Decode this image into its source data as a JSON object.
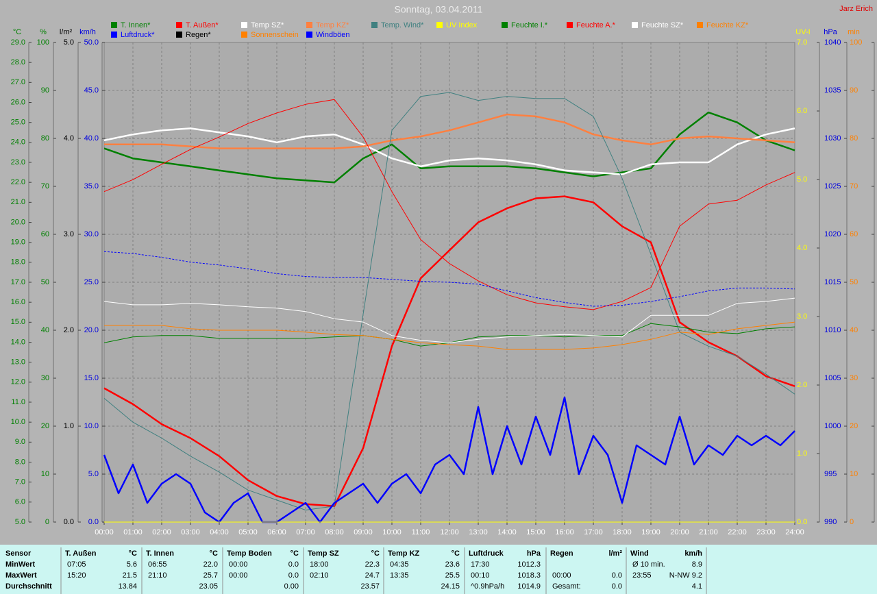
{
  "chart_data": {
    "type": "line",
    "title": "Sonntag, 03.04.2011",
    "author": "Jarz Erich",
    "xlim": [
      0,
      24
    ],
    "xticks": [
      {
        "value": 0,
        "label": "00:00"
      },
      {
        "value": 1,
        "label": "01:00"
      },
      {
        "value": 2,
        "label": "02:00"
      },
      {
        "value": 3,
        "label": "03:00"
      },
      {
        "value": 4,
        "label": "04:00"
      },
      {
        "value": 5,
        "label": "05:00"
      },
      {
        "value": 6,
        "label": "06:00"
      },
      {
        "value": 7,
        "label": "07:00"
      },
      {
        "value": 8,
        "label": "08:00"
      },
      {
        "value": 9,
        "label": "09:00"
      },
      {
        "value": 10,
        "label": "10:00"
      },
      {
        "value": 11,
        "label": "11:00"
      },
      {
        "value": 12,
        "label": "12:00"
      },
      {
        "value": 13,
        "label": "13:00"
      },
      {
        "value": 14,
        "label": "14:00"
      },
      {
        "value": 15,
        "label": "15:00"
      },
      {
        "value": 16,
        "label": "16:00"
      },
      {
        "value": 17,
        "label": "17:00"
      },
      {
        "value": 18,
        "label": "18:00"
      },
      {
        "value": 19,
        "label": "19:00"
      },
      {
        "value": 20,
        "label": "20:00"
      },
      {
        "value": 21,
        "label": "21:00"
      },
      {
        "value": 22,
        "label": "22:00"
      },
      {
        "value": 23,
        "label": "23:00"
      },
      {
        "value": 24,
        "label": "24:00"
      }
    ],
    "grid": true,
    "grid_axis": 1,
    "axes": [
      {
        "label": "°C",
        "color": "#008000",
        "side": "left",
        "lim": [
          5,
          29
        ],
        "ticks": [
          {
            "value": 5,
            "label": "5.0"
          },
          {
            "value": 6,
            "label": "6.0"
          },
          {
            "value": 7,
            "label": "7.0"
          },
          {
            "value": 8,
            "label": "8.0"
          },
          {
            "value": 9,
            "label": "9.0"
          },
          {
            "value": 10,
            "label": "10.0"
          },
          {
            "value": 11,
            "label": "11.0"
          },
          {
            "value": 12,
            "label": "12.0"
          },
          {
            "value": 13,
            "label": "13.0"
          },
          {
            "value": 14,
            "label": "14.0"
          },
          {
            "value": 15,
            "label": "15.0"
          },
          {
            "value": 16,
            "label": "16.0"
          },
          {
            "value": 17,
            "label": "17.0"
          },
          {
            "value": 18,
            "label": "18.0"
          },
          {
            "value": 19,
            "label": "19.0"
          },
          {
            "value": 20,
            "label": "20.0"
          },
          {
            "value": 21,
            "label": "21.0"
          },
          {
            "value": 22,
            "label": "22.0"
          },
          {
            "value": 23,
            "label": "23.0"
          },
          {
            "value": 24,
            "label": "24.0"
          },
          {
            "value": 25,
            "label": "25.0"
          },
          {
            "value": 26,
            "label": "26.0"
          },
          {
            "value": 27,
            "label": "27.0"
          },
          {
            "value": 28,
            "label": "28.0"
          },
          {
            "value": 29,
            "label": "29.0"
          }
        ]
      },
      {
        "label": "%",
        "color": "#008000",
        "side": "left",
        "lim": [
          0,
          100
        ],
        "ticks": [
          0,
          10,
          20,
          30,
          40,
          50,
          60,
          70,
          80,
          90,
          100
        ]
      },
      {
        "label": "l/m²",
        "color": "#000000",
        "side": "left",
        "lim": [
          0,
          5
        ],
        "ticks": [
          {
            "value": 0,
            "label": "0.0"
          },
          {
            "value": 1,
            "label": "1.0"
          },
          {
            "value": 2,
            "label": "2.0"
          },
          {
            "value": 3,
            "label": "3.0"
          },
          {
            "value": 4,
            "label": "4.0"
          },
          {
            "value": 5,
            "label": "5.0"
          }
        ]
      },
      {
        "label": "km/h",
        "color": "#0000e0",
        "side": "left",
        "lim": [
          0,
          50
        ],
        "ticks": [
          {
            "value": 0,
            "label": "0.0"
          },
          {
            "value": 5,
            "label": "5.0"
          },
          {
            "value": 10,
            "label": "10.0"
          },
          {
            "value": 15,
            "label": "15.0"
          },
          {
            "value": 20,
            "label": "20.0"
          },
          {
            "value": 25,
            "label": "25.0"
          },
          {
            "value": 30,
            "label": "30.0"
          },
          {
            "value": 35,
            "label": "35.0"
          },
          {
            "value": 40,
            "label": "40.0"
          },
          {
            "value": 45,
            "label": "45.0"
          },
          {
            "value": 50,
            "label": "50.0"
          }
        ]
      },
      {
        "label": "UV-I",
        "color": "#ffff00",
        "side": "right",
        "lim": [
          0,
          7
        ],
        "ticks": [
          {
            "value": 0,
            "label": "0.0"
          },
          {
            "value": 1,
            "label": "1.0"
          },
          {
            "value": 2,
            "label": "2.0"
          },
          {
            "value": 3,
            "label": "3.0"
          },
          {
            "value": 4,
            "label": "4.0"
          },
          {
            "value": 5,
            "label": "5.0"
          },
          {
            "value": 6,
            "label": "6.0"
          },
          {
            "value": 7,
            "label": "7.0"
          }
        ]
      },
      {
        "label": "hPa",
        "color": "#0000e0",
        "side": "right",
        "lim": [
          990,
          1040
        ],
        "ticks": [
          990,
          995,
          1000,
          1005,
          1010,
          1015,
          1020,
          1025,
          1030,
          1035,
          1040
        ]
      },
      {
        "label": "min",
        "color": "#ff8000",
        "side": "right",
        "lim": [
          0,
          100
        ],
        "ticks": [
          0,
          10,
          20,
          30,
          40,
          50,
          60,
          70,
          80,
          90,
          100
        ]
      }
    ],
    "x": [
      0,
      1,
      2,
      3,
      4,
      5,
      6,
      7,
      8,
      9,
      10,
      11,
      12,
      13,
      14,
      15,
      16,
      17,
      18,
      19,
      20,
      21,
      22,
      23,
      24
    ],
    "series": [
      {
        "name": "T. Innen*",
        "color": "#008000",
        "axis": 0,
        "width": "thick",
        "values": [
          23.7,
          23.2,
          23.0,
          22.8,
          22.6,
          22.4,
          22.2,
          22.1,
          22.0,
          23.2,
          23.9,
          22.7,
          22.8,
          22.8,
          22.8,
          22.7,
          22.5,
          22.3,
          22.5,
          22.7,
          24.4,
          25.5,
          25.0,
          24.1,
          23.6
        ]
      },
      {
        "name": "T. Außen*",
        "color": "#ff0000",
        "axis": 0,
        "width": "thick",
        "values": [
          11.7,
          10.9,
          9.9,
          9.2,
          8.3,
          7.1,
          6.3,
          5.9,
          5.8,
          8.7,
          13.8,
          17.2,
          18.6,
          20.0,
          20.7,
          21.2,
          21.3,
          21.0,
          19.8,
          19.0,
          15.0,
          14.0,
          13.3,
          12.3,
          11.8
        ]
      },
      {
        "name": "Temp SZ*",
        "color": "#ffffff",
        "axis": 0,
        "width": "thick",
        "values": [
          24.1,
          24.4,
          24.6,
          24.7,
          24.5,
          24.3,
          24.0,
          24.3,
          24.4,
          23.9,
          23.2,
          22.8,
          23.1,
          23.2,
          23.1,
          22.9,
          22.6,
          22.5,
          22.4,
          22.9,
          23.0,
          23.0,
          23.9,
          24.4,
          24.7
        ]
      },
      {
        "name": "Temp KZ*",
        "color": "#ff8040",
        "axis": 0,
        "width": "thick",
        "values": [
          23.9,
          23.9,
          23.9,
          23.8,
          23.7,
          23.7,
          23.7,
          23.7,
          23.7,
          23.8,
          24.1,
          24.3,
          24.6,
          25.0,
          25.4,
          25.3,
          25.0,
          24.4,
          24.1,
          23.9,
          24.2,
          24.3,
          24.2,
          24.1,
          24.0
        ]
      },
      {
        "name": "Temp. Wind*",
        "color": "#408080",
        "axis": 0,
        "width": "thin",
        "values": [
          11.2,
          10.0,
          9.2,
          8.3,
          7.5,
          6.6,
          6.1,
          5.6,
          5.8,
          15.4,
          24.6,
          26.3,
          26.5,
          26.1,
          26.3,
          26.2,
          26.2,
          25.3,
          22.2,
          18.4,
          14.5,
          13.8,
          13.3,
          12.4,
          11.4
        ]
      },
      {
        "name": "UV Index",
        "color": "#ffff00",
        "axis": 4,
        "width": "thin",
        "values": [
          0,
          0,
          0,
          0,
          0,
          0,
          0,
          0,
          0,
          0,
          0,
          0,
          0,
          0,
          0,
          0,
          0,
          0,
          0,
          0,
          0,
          0,
          0,
          0,
          0
        ]
      },
      {
        "name": "Feuchte I.*",
        "color": "#008000",
        "axis": 1,
        "width": "thin",
        "values": [
          37.4,
          38.6,
          38.9,
          38.9,
          38.3,
          38.3,
          38.3,
          38.3,
          38.6,
          38.9,
          38.1,
          36.7,
          37.4,
          38.6,
          38.9,
          38.9,
          38.6,
          38.9,
          38.9,
          41.4,
          40.7,
          39.6,
          39.3,
          40.3,
          40.7
        ]
      },
      {
        "name": "Feuchte A.*",
        "color": "#ff0000",
        "axis": 1,
        "width": "thin",
        "values": [
          68.9,
          71.4,
          74.6,
          77.7,
          80.3,
          83.1,
          85.3,
          87.1,
          88.1,
          80.3,
          68.9,
          58.9,
          53.9,
          50.3,
          47.4,
          45.7,
          44.9,
          44.3,
          46.0,
          48.9,
          61.7,
          66.3,
          67.1,
          70.3,
          72.9
        ]
      },
      {
        "name": "Feuchte SZ*",
        "color": "#ffffff",
        "axis": 1,
        "width": "thin",
        "values": [
          46.0,
          45.3,
          45.3,
          45.6,
          45.3,
          44.9,
          44.6,
          43.9,
          42.4,
          41.7,
          38.9,
          37.9,
          37.4,
          38.1,
          38.6,
          38.9,
          39.1,
          38.9,
          38.6,
          43.1,
          43.1,
          43.1,
          45.6,
          46.0,
          46.7
        ]
      },
      {
        "name": "Feuchte KZ*",
        "color": "#ff8000",
        "axis": 1,
        "width": "thin",
        "values": [
          41.0,
          41.0,
          41.0,
          40.3,
          40.0,
          40.0,
          40.0,
          39.6,
          39.1,
          38.9,
          38.1,
          37.4,
          37.0,
          36.7,
          36.0,
          36.0,
          36.0,
          36.3,
          37.0,
          38.1,
          39.6,
          39.1,
          40.3,
          41.0,
          41.7
        ]
      },
      {
        "name": "Luftdruck*",
        "color": "#0000ff",
        "axis": 5,
        "width": "thin",
        "dashed": true,
        "values": [
          1018.2,
          1018.0,
          1017.6,
          1017.1,
          1016.8,
          1016.4,
          1015.9,
          1015.6,
          1015.5,
          1015.5,
          1015.3,
          1015.1,
          1015.0,
          1014.8,
          1014.1,
          1013.4,
          1012.9,
          1012.5,
          1012.6,
          1013.0,
          1013.5,
          1014.1,
          1014.4,
          1014.4,
          1014.3
        ]
      },
      {
        "name": "Regen*",
        "color": "#000000",
        "axis": 2,
        "width": "thin",
        "values": [
          0,
          0,
          0,
          0,
          0,
          0,
          0,
          0,
          0,
          0,
          0,
          0,
          0,
          0,
          0,
          0,
          0,
          0,
          0,
          0,
          0,
          0,
          0,
          0,
          0
        ]
      },
      {
        "name": "Sonnenschein",
        "color": "#ff8000",
        "axis": 6,
        "width": "thin",
        "values": [
          0,
          0,
          0,
          0,
          0,
          0,
          0,
          0,
          0,
          0,
          0,
          0,
          0,
          0,
          0,
          0,
          0,
          0,
          0,
          0,
          0,
          0,
          0,
          0,
          0
        ]
      },
      {
        "name": "Windböen",
        "color": "#0000ff",
        "axis": 3,
        "width": "thick",
        "x": [
          0,
          0.5,
          1,
          1.5,
          2,
          2.5,
          3,
          3.5,
          4,
          4.5,
          5,
          5.5,
          6,
          6.5,
          7,
          7.5,
          8,
          8.5,
          9,
          9.5,
          10,
          10.5,
          11,
          11.5,
          12,
          12.5,
          13,
          13.5,
          14,
          14.5,
          15,
          15.5,
          16,
          16.5,
          17,
          17.5,
          18,
          18.5,
          19,
          19.5,
          20,
          20.5,
          21,
          21.5,
          22,
          22.5,
          23,
          23.5,
          24
        ],
        "values": [
          7,
          3,
          6,
          2,
          4,
          5,
          4,
          1,
          0,
          2,
          3,
          0,
          0,
          1,
          2,
          0,
          2,
          3,
          4,
          2,
          4,
          5,
          3,
          6,
          7,
          5,
          12,
          5,
          10,
          6,
          11,
          7,
          13,
          5,
          9,
          7,
          2,
          8,
          7,
          6,
          11,
          6,
          8,
          7,
          9,
          8,
          9,
          8,
          9.5
        ]
      }
    ]
  },
  "stats": {
    "row_labels": [
      "Sensor",
      "MinWert",
      "MaxWert",
      "Durchschnitt"
    ],
    "columns": [
      {
        "sensor": "T. Außen",
        "unit": "°C",
        "rows": [
          [
            "07:05",
            "5.6"
          ],
          [
            "15:20",
            "21.5"
          ],
          [
            null,
            "13.84"
          ]
        ]
      },
      {
        "sensor": "T. Innen",
        "unit": "°C",
        "rows": [
          [
            "06:55",
            "22.0"
          ],
          [
            "21:10",
            "25.7"
          ],
          [
            null,
            "23.05"
          ]
        ]
      },
      {
        "sensor": "Temp Boden",
        "unit": "°C",
        "rows": [
          [
            "00:00",
            "0.0"
          ],
          [
            "00:00",
            "0.0"
          ],
          [
            null,
            "0.00"
          ]
        ]
      },
      {
        "sensor": "Temp SZ",
        "unit": "°C",
        "rows": [
          [
            "18:00",
            "22.3"
          ],
          [
            "02:10",
            "24.7"
          ],
          [
            null,
            "23.57"
          ]
        ]
      },
      {
        "sensor": "Temp KZ",
        "unit": "°C",
        "rows": [
          [
            "04:35",
            "23.6"
          ],
          [
            "13:35",
            "25.5"
          ],
          [
            null,
            "24.15"
          ]
        ]
      },
      {
        "sensor": "Luftdruck",
        "unit": "hPa",
        "rows": [
          [
            "17:30",
            "1012.3"
          ],
          [
            "00:10",
            "1018.3"
          ],
          [
            "^0.9hPa/h",
            "1014.9"
          ]
        ]
      },
      {
        "sensor": "Regen",
        "unit": "l/m²",
        "rows": [
          [
            null,
            null
          ],
          [
            "00:00",
            "0.0"
          ],
          [
            "Gesamt:",
            "0.0"
          ]
        ]
      },
      {
        "sensor": "Wind",
        "unit": "km/h",
        "rows": [
          [
            "Ø 10 min.",
            "8.9"
          ],
          [
            "23:55",
            "N-NW 9.2"
          ],
          [
            null,
            "4.1"
          ]
        ]
      }
    ]
  }
}
